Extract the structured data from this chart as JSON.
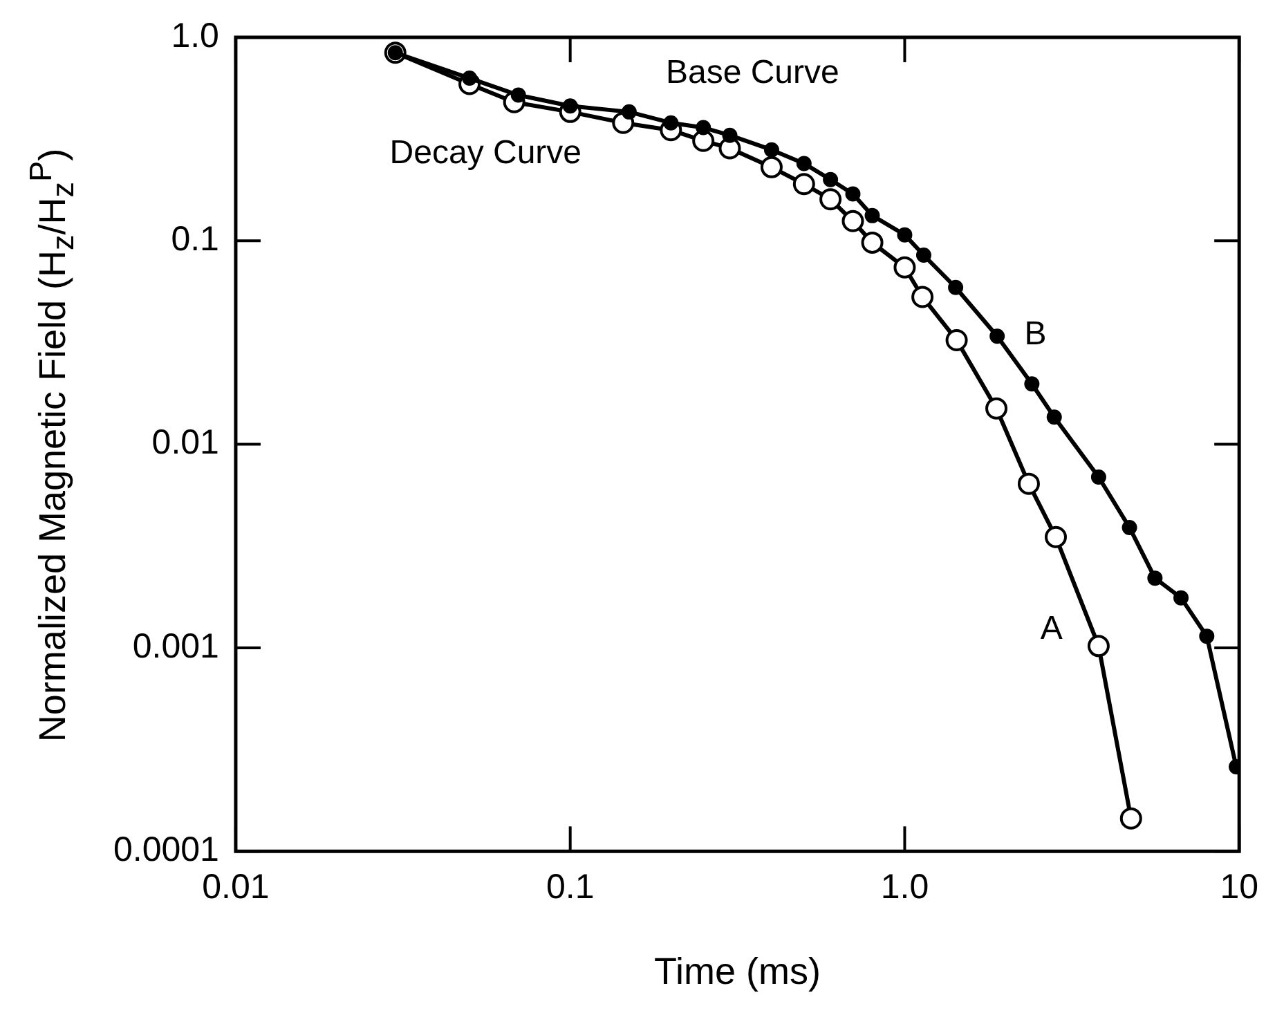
{
  "chart_data": {
    "type": "line",
    "xlabel": "Time (ms)",
    "ylabel": "Normalized Magnetic Field (H$_{z}$/H$_{z}$$^{P}$)",
    "log": "xy",
    "grid": false,
    "marker": "circle",
    "line_style": "solid",
    "xlim": [
      0.01,
      10
    ],
    "xticks": [
      0.01,
      0.1,
      {
        "value": 1,
        "label": "1.0"
      },
      10
    ],
    "ylim": [
      0.0001,
      1
    ],
    "yticks": [
      0.0001,
      0.001,
      0.01,
      0.1,
      {
        "value": 1,
        "label": "1.0"
      }
    ],
    "series": [
      {
        "name": "Decay Curve",
        "color": "#000000",
        "x": [
          0.03,
          0.05,
          0.068,
          0.1,
          0.144,
          0.2,
          0.25,
          0.3,
          0.4,
          0.5,
          0.6,
          0.7,
          0.8,
          1.0,
          1.13,
          1.43,
          1.88,
          2.35,
          2.83,
          3.8,
          4.75
        ],
        "values": [
          0.84,
          0.59,
          0.48,
          0.43,
          0.38,
          0.35,
          0.31,
          0.285,
          0.23,
          0.19,
          0.16,
          0.125,
          0.098,
          0.074,
          0.053,
          0.0325,
          0.015,
          0.0064,
          0.0035,
          0.00102,
          0.000145
        ]
      },
      {
        "name": "Base Curve",
        "color": "#000000",
        "x": [
          0.03,
          0.05,
          0.07,
          0.1,
          0.15,
          0.2,
          0.25,
          0.3,
          0.4,
          0.5,
          0.6,
          0.7,
          0.8,
          1.0,
          1.14,
          1.42,
          1.89,
          2.4,
          2.8,
          3.8,
          4.7,
          5.6,
          6.7,
          8.0,
          9.8
        ],
        "values": [
          0.84,
          0.63,
          0.52,
          0.46,
          0.43,
          0.38,
          0.36,
          0.33,
          0.28,
          0.24,
          0.2,
          0.17,
          0.133,
          0.107,
          0.085,
          0.059,
          0.034,
          0.0198,
          0.0136,
          0.0069,
          0.0039,
          0.0022,
          0.00176,
          0.00114,
          0.00026
        ]
      }
    ],
    "annotations": [
      "B",
      "A"
    ]
  }
}
